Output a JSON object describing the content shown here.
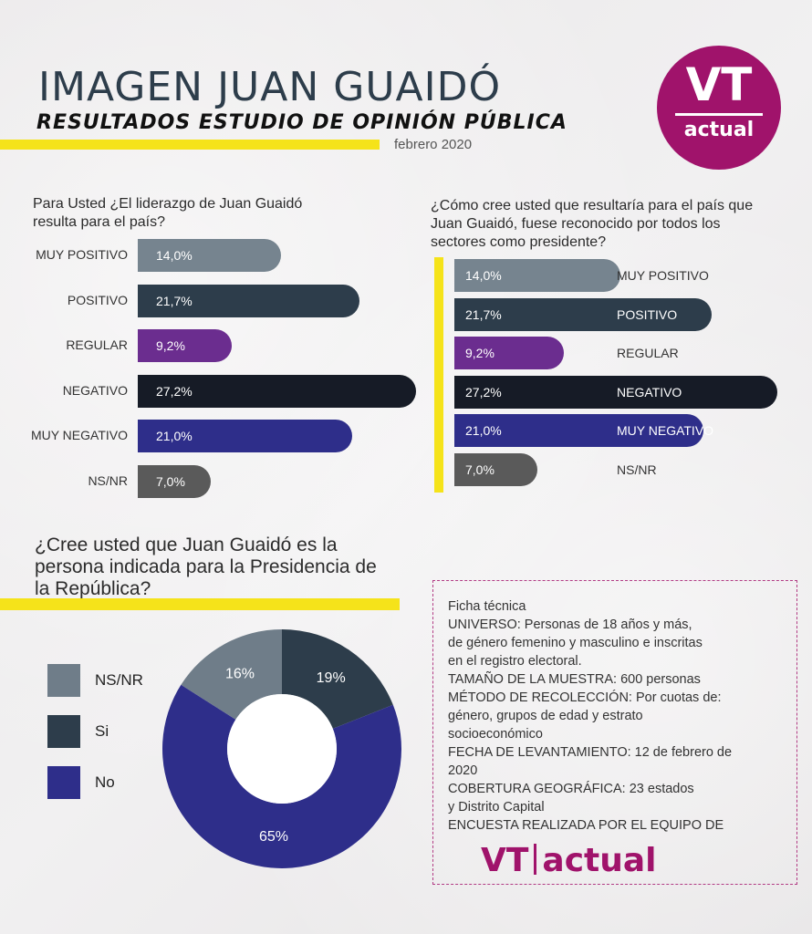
{
  "header": {
    "title": "IMAGEN JUAN GUAIDÓ",
    "subtitle": "RESULTADOS ESTUDIO DE OPINIÓN PÚBLICA",
    "date": "febrero 2020"
  },
  "logo": {
    "top": "VT",
    "bottom": "actual"
  },
  "colors": {
    "yellow": "#f5e31a",
    "magenta": "#a0136b",
    "no": "#2e2e8a",
    "si": "#2d3d4b",
    "nsnr": "#6f7d89"
  },
  "chart_data": [
    {
      "type": "bar",
      "title": "Para Usted ¿El liderazgo de Juan Guaidó resulta para el país?",
      "categories": [
        "MUY POSITIVO",
        "POSITIVO",
        "REGULAR",
        "NEGATIVO",
        "MUY NEGATIVO",
        "NS/NR"
      ],
      "values": [
        14.0,
        21.7,
        9.2,
        27.2,
        21.0,
        7.0
      ],
      "labels": [
        "14,0%",
        "21,7%",
        "9,2%",
        "27,2%",
        "21,0%",
        "7,0%"
      ],
      "colors": [
        "#76848f",
        "#2d3d4b",
        "#6b2d8f",
        "#161b26",
        "#2e2e8a",
        "#5a5a5a"
      ]
    },
    {
      "type": "bar",
      "title": "¿Cómo cree usted que resultaría para el país que Juan Guaidó, fuese reconocido por todos los sectores como presidente?",
      "categories": [
        "MUY POSITIVO",
        "POSITIVO",
        "REGULAR",
        "NEGATIVO",
        "MUY NEGATIVO",
        "NS/NR"
      ],
      "values": [
        14.0,
        21.7,
        9.2,
        27.2,
        21.0,
        7.0
      ],
      "labels": [
        "14,0%",
        "21,7%",
        "9,2%",
        "27,2%",
        "21,0%",
        "7,0%"
      ],
      "colors": [
        "#76848f",
        "#2d3d4b",
        "#6b2d8f",
        "#161b26",
        "#2e2e8a",
        "#5a5a5a"
      ]
    },
    {
      "type": "pie",
      "title": "¿Cree usted que Juan Guaidó es la persona indicada para la Presidencia de la República?",
      "categories": [
        "NS/NR",
        "Si",
        "No"
      ],
      "values": [
        16,
        19,
        65
      ],
      "labels": [
        "16%",
        "19%",
        "65%"
      ],
      "colors": [
        "#6f7d89",
        "#2d3d4b",
        "#2e2e8a"
      ]
    }
  ],
  "ficha": {
    "lines": [
      "Ficha técnica",
      "UNIVERSO: Personas de 18 años y más,",
      "de género femenino y masculino e inscritas",
      "en el registro electoral.",
      "TAMAÑO DE LA MUESTRA: 600 personas",
      "MÉTODO DE RECOLECCIÓN: Por cuotas de:",
      "género, grupos de edad y estrato",
      "socioeconómico",
      "FECHA DE LEVANTAMIENTO: 12 de febrero de",
      "2020",
      "COBERTURA GEOGRÁFICA: 23 estados",
      "y Distrito Capital",
      "ENCUESTA REALIZADA POR EL EQUIPO DE"
    ],
    "brand_left": "VT",
    "brand_right": "actual"
  }
}
